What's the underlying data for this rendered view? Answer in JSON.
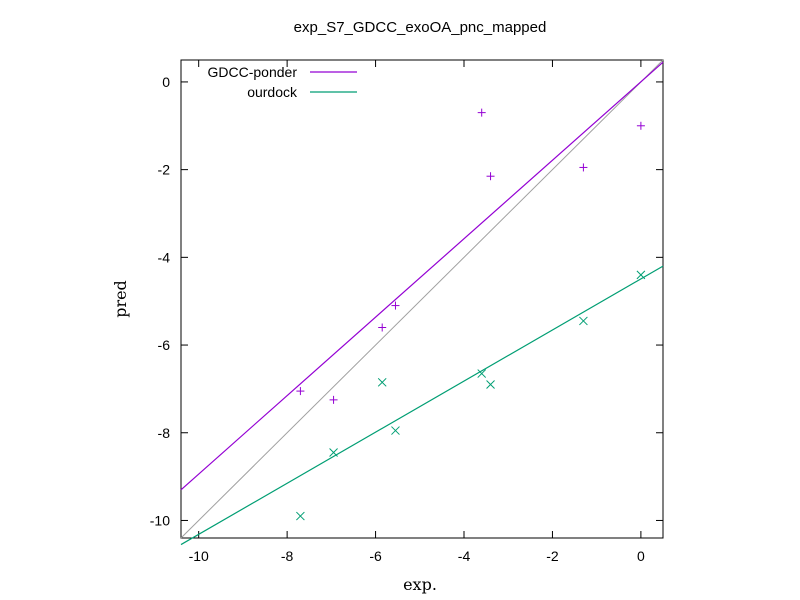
{
  "chart_data": {
    "type": "scatter",
    "title": "exp_S7_GDCC_exoOA_pnc_mapped",
    "xlabel": "exp.",
    "ylabel": "pred",
    "xlim": [
      -10.4,
      0.5
    ],
    "ylim": [
      -10.4,
      0.5
    ],
    "xticks": [
      -10,
      -8,
      -6,
      -4,
      -2,
      0
    ],
    "yticks": [
      0,
      -2,
      -4,
      -6,
      -8,
      -10
    ],
    "grid": false,
    "legend_position": "top-left",
    "diagonal": {
      "from": [
        -10.4,
        -10.4
      ],
      "to": [
        0.5,
        0.5
      ],
      "color": "#a0a0a0"
    },
    "series": [
      {
        "name": "GDCC-ponder",
        "marker": "plus",
        "color": "#9400d3",
        "x": [
          -7.7,
          -6.95,
          -5.85,
          -5.55,
          -3.6,
          -3.4,
          -1.3,
          0.0
        ],
        "y": [
          -7.05,
          -7.25,
          -5.6,
          -5.1,
          -0.7,
          -2.15,
          -1.95,
          -1.0
        ],
        "fit": {
          "from": [
            -10.4,
            -9.3
          ],
          "to": [
            0.5,
            0.45
          ]
        }
      },
      {
        "name": "ourdock",
        "marker": "cross",
        "color": "#009e73",
        "x": [
          -7.7,
          -6.95,
          -5.85,
          -5.55,
          -3.6,
          -3.4,
          -1.3,
          0.0
        ],
        "y": [
          -9.9,
          -8.45,
          -6.85,
          -7.95,
          -6.65,
          -6.9,
          -5.45,
          -4.4
        ],
        "fit": {
          "from": [
            -10.4,
            -10.55
          ],
          "to": [
            0.5,
            -4.2
          ]
        }
      }
    ]
  }
}
